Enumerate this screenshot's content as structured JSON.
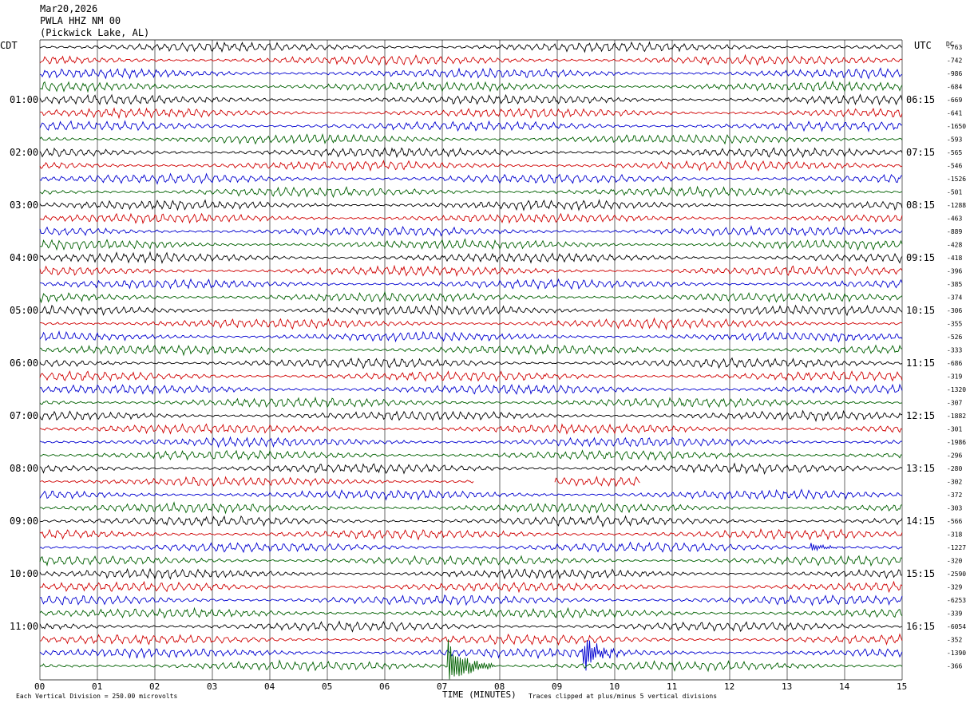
{
  "header": {
    "date": "Mar20,2026",
    "station": "PWLA HHZ NM 00",
    "location": "(Pickwick Lake, AL)"
  },
  "left_tz": "CDT",
  "right_tz": "UTC",
  "dc_label": "DC",
  "footer": {
    "scale": "Each Vertical Division =  250.00 microvolts",
    "xlabel": "TIME (MINUTES)",
    "clip_note": "Traces clipped at plus/minus 5 vertical divisions"
  },
  "colors": {
    "trace_cycle": [
      "#000000",
      "#d00000",
      "#0000d0",
      "#006000"
    ],
    "grid": "#000000"
  },
  "chart_data": {
    "type": "line",
    "title": "",
    "xlabel": "TIME (MINUTES)",
    "xlim": [
      0,
      15
    ],
    "x_ticks": [
      "00",
      "01",
      "02",
      "03",
      "04",
      "05",
      "06",
      "07",
      "08",
      "09",
      "10",
      "11",
      "12",
      "13",
      "14",
      "15"
    ],
    "rows": 48,
    "left_hour_labels": [
      {
        "row": 4,
        "text": "01:00"
      },
      {
        "row": 8,
        "text": "02:00"
      },
      {
        "row": 12,
        "text": "03:00"
      },
      {
        "row": 16,
        "text": "04:00"
      },
      {
        "row": 20,
        "text": "05:00"
      },
      {
        "row": 24,
        "text": "06:00"
      },
      {
        "row": 28,
        "text": "07:00"
      },
      {
        "row": 32,
        "text": "08:00"
      },
      {
        "row": 36,
        "text": "09:00"
      },
      {
        "row": 40,
        "text": "10:00"
      },
      {
        "row": 44,
        "text": "11:00"
      }
    ],
    "right_hour_labels": [
      {
        "row": 4,
        "text": "06:15"
      },
      {
        "row": 8,
        "text": "07:15"
      },
      {
        "row": 12,
        "text": "08:15"
      },
      {
        "row": 16,
        "text": "09:15"
      },
      {
        "row": 20,
        "text": "10:15"
      },
      {
        "row": 24,
        "text": "11:15"
      },
      {
        "row": 28,
        "text": "12:15"
      },
      {
        "row": 32,
        "text": "13:15"
      },
      {
        "row": 36,
        "text": "14:15"
      },
      {
        "row": 40,
        "text": "15:15"
      },
      {
        "row": 44,
        "text": "16:15"
      }
    ],
    "dc_offsets": [
      "-763",
      "-742",
      "-986",
      "-684",
      "-669",
      "-641",
      "-1650",
      "-593",
      "-565",
      "-546",
      "-1526",
      "-501",
      "-1288",
      "-463",
      "-889",
      "-428",
      "-418",
      "-396",
      "-385",
      "-374",
      "-306",
      "-355",
      "-526",
      "-333",
      "-686",
      "-319",
      "-1320",
      "-307",
      "-1882",
      "-301",
      "-1986",
      "-296",
      "-280",
      "-302",
      "-372",
      "-303",
      "-566",
      "-318",
      "-1227",
      "-320",
      "-2590",
      "-329",
      "-6253",
      "-339",
      "-6054",
      "-352",
      "-1390",
      "-366"
    ],
    "amplitude_divisions": 0.3,
    "gaps": [
      {
        "row": 33,
        "from_min": 7.55,
        "to_min": 8.95
      },
      {
        "row": 33,
        "from_min": 10.45,
        "to_min": 15.0
      }
    ],
    "events": [
      {
        "row": 46,
        "at_min": 9.45,
        "duration_min": 0.7,
        "peak_divisions": 2.5
      },
      {
        "row": 47,
        "at_min": 7.1,
        "duration_min": 0.8,
        "peak_divisions": 3.5
      },
      {
        "row": 38,
        "at_min": 13.4,
        "duration_min": 0.6,
        "peak_divisions": 1.0
      },
      {
        "row": 47,
        "at_min": 4.1,
        "duration_min": 0.5,
        "peak_divisions": 0.6
      }
    ]
  }
}
